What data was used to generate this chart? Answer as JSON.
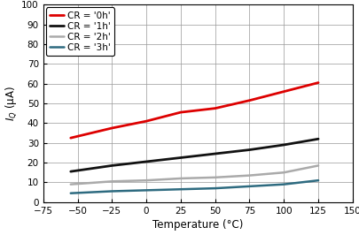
{
  "title": "",
  "xlabel": "Temperature (°C)",
  "ylabel": "I₂ (μA)",
  "xlim": [
    -75,
    150
  ],
  "ylim": [
    0,
    100
  ],
  "xticks": [
    -75,
    -50,
    -25,
    0,
    25,
    50,
    75,
    100,
    125,
    150
  ],
  "yticks": [
    0,
    10,
    20,
    30,
    40,
    50,
    60,
    70,
    80,
    90,
    100
  ],
  "series": [
    {
      "label": "CR = '0h'",
      "color": "#dd0000",
      "linewidth": 2.0,
      "x": [
        -55,
        -25,
        0,
        25,
        50,
        75,
        100,
        125
      ],
      "y": [
        32.5,
        37.5,
        41.0,
        45.5,
        47.5,
        51.5,
        56.0,
        60.5
      ]
    },
    {
      "label": "CR = '1h'",
      "color": "#111111",
      "linewidth": 2.0,
      "x": [
        -55,
        -25,
        0,
        25,
        50,
        75,
        100,
        125
      ],
      "y": [
        15.5,
        18.5,
        20.5,
        22.5,
        24.5,
        26.5,
        29.0,
        32.0
      ]
    },
    {
      "label": "CR = '2h'",
      "color": "#aaaaaa",
      "linewidth": 1.8,
      "x": [
        -55,
        -25,
        0,
        25,
        50,
        75,
        100,
        125
      ],
      "y": [
        9.0,
        10.5,
        11.0,
        12.0,
        12.5,
        13.5,
        15.0,
        18.5
      ]
    },
    {
      "label": "CR = '3h'",
      "color": "#2e6b80",
      "linewidth": 1.8,
      "x": [
        -55,
        -25,
        0,
        25,
        50,
        75,
        100,
        125
      ],
      "y": [
        4.5,
        5.5,
        6.0,
        6.5,
        7.0,
        8.0,
        9.0,
        11.0
      ]
    }
  ],
  "legend_fontsize": 7.5,
  "axis_fontsize": 8.5,
  "tick_fontsize": 7.5,
  "grid_color": "#999999",
  "background_color": "#ffffff",
  "legend_box_color": "#000000"
}
